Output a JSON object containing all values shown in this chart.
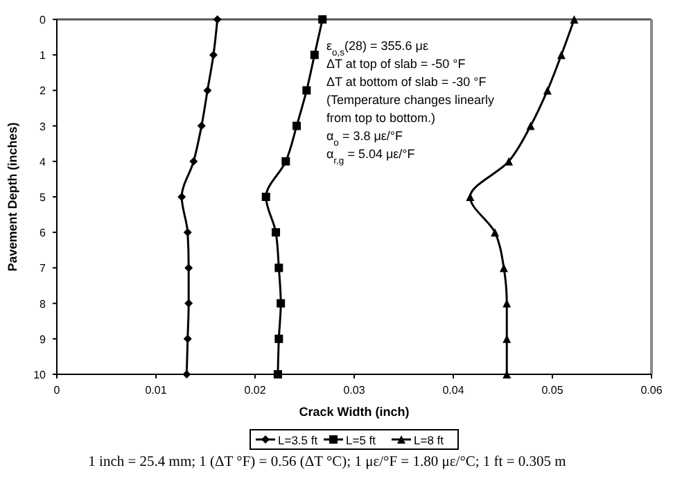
{
  "chart_data": {
    "type": "line",
    "xlabel": "Crack Width (inch)",
    "ylabel": "Pavement Depth (inches)",
    "x": [
      0,
      1,
      2,
      3,
      4,
      5,
      6,
      7,
      8,
      9,
      10
    ],
    "series": [
      {
        "name": "L=3.5 ft",
        "color": "#000000",
        "marker": "diamond",
        "values": [
          0.0162,
          0.0158,
          0.0152,
          0.0146,
          0.0138,
          0.0126,
          0.0132,
          0.0133,
          0.0133,
          0.0132,
          0.0131
        ]
      },
      {
        "name": "L=5 ft",
        "color": "#000000",
        "marker": "square",
        "values": [
          0.0268,
          0.026,
          0.0252,
          0.0242,
          0.0231,
          0.0211,
          0.0221,
          0.0224,
          0.0226,
          0.0224,
          0.0223
        ]
      },
      {
        "name": "L=8 ft",
        "color": "#000000",
        "marker": "triangle",
        "values": [
          0.0522,
          0.0509,
          0.0495,
          0.0478,
          0.0456,
          0.0417,
          0.0442,
          0.0451,
          0.0454,
          0.0454,
          0.0454
        ]
      }
    ],
    "orientation": "horizontal",
    "xlim": [
      0,
      0.06
    ],
    "xticks": [
      0,
      0.01,
      0.02,
      0.03,
      0.04,
      0.05,
      0.06
    ],
    "ylim": [
      10,
      0
    ],
    "yticks": [
      0,
      1,
      2,
      3,
      4,
      5,
      6,
      7,
      8,
      9,
      10
    ],
    "grid": false,
    "legend": "bottom",
    "line_style": "solid",
    "annotations": [
      "ε$_{o,s}$(28) = 355.6 με",
      "ΔT  at top of slab = -50 °F",
      "ΔT  at bottom of slab = -30 °F",
      "(Temperature changes linearly",
      "from top to bottom.)",
      "α$_{o}$ = 3.8 με/°F",
      "α$_{r,g}$ = 5.04 με/°F",
      "1 inch = 25.4 mm; 1 (ΔT °F) = 0.56 (ΔT °C); 1 με/°F = 1.80 με/°C; 1 ft = 0.305 m"
    ]
  }
}
